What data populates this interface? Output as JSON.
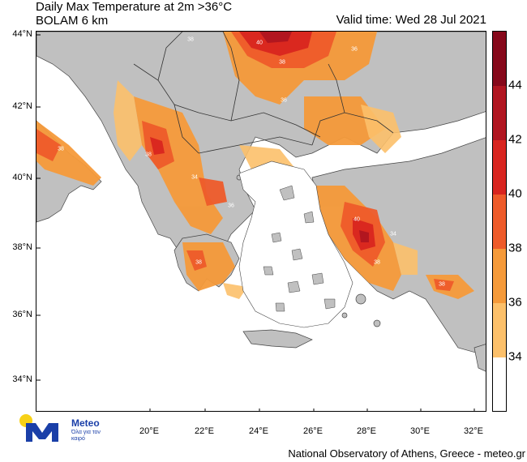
{
  "header": {
    "title": "Daily Max Temperature at 2m >36°C",
    "subtitle": "BOLAM 6 km",
    "valid_time": "Valid time: Wed 28 Jul 2021"
  },
  "footer": {
    "credit": "National Observatory of Athens, Greece - meteo.gr"
  },
  "logo": {
    "name": "Meteo",
    "tagline": "Όλα για τον καιρό",
    "colors": {
      "blue": "#1a3fa8",
      "sun": "#f7d117"
    }
  },
  "axes": {
    "latitude_labels": [
      "44°N",
      "42°N",
      "40°N",
      "38°N",
      "36°N",
      "34°N"
    ],
    "longitude_labels": [
      "20°E",
      "22°E",
      "24°E",
      "26°E",
      "28°E",
      "30°E",
      "32°E"
    ]
  },
  "colorbar": {
    "levels": [
      "34",
      "36",
      "38",
      "40",
      "42",
      "44"
    ],
    "colors": {
      "below_34": "#ffffff",
      "34_36": "#fcc06a",
      "36_38": "#f59a3a",
      "38_40": "#ee5b2a",
      "40_42": "#d8251f",
      "42_44": "#b01520",
      "above_44": "#86081a"
    }
  },
  "map_colors": {
    "sea": "#ffffff",
    "land": "#c0c0c0",
    "border": "#333333"
  },
  "contour_labels": [
    "34",
    "36",
    "38",
    "40"
  ]
}
